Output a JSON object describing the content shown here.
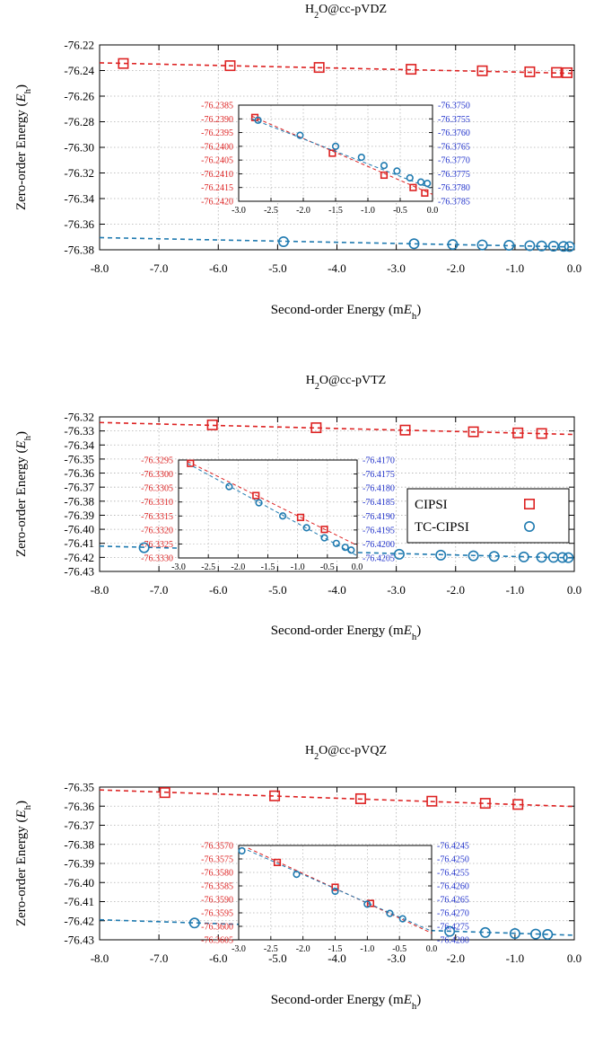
{
  "colors": {
    "cipsi": "#dd2222",
    "tc": "#1f7ab0",
    "cipsi_axis": "#dd2222",
    "tc_axis": "#2233cc"
  },
  "legend": {
    "cipsi": "CIPSI",
    "tc": "TC-CIPSI"
  },
  "chart_data": [
    {
      "type": "scatter",
      "title": "H2O@cc-pVDZ",
      "title_parts": {
        "pre": "H",
        "sub": "2",
        "post": "O@cc-pVDZ"
      },
      "xlabel": "Second-order Energy (mEh)",
      "xlabel_parts": {
        "pre": "Second-order Energy (m",
        "ital": "E",
        "sub": "h",
        "post": ")"
      },
      "ylabel": "Zero-order Energy (Eh)",
      "ylabel_parts": {
        "pre": "Zero-order Energy (",
        "ital": "E",
        "sub": "h",
        "post": ")"
      },
      "xlim": [
        -8.0,
        0.0
      ],
      "ylim": [
        -76.38,
        -76.22
      ],
      "xticks": [
        -8.0,
        -7.0,
        -6.0,
        -5.0,
        -4.0,
        -3.0,
        -2.0,
        -1.0,
        0.0
      ],
      "xtick_labels": [
        "-8.0",
        "-7.0",
        "-6.0",
        "-5.0",
        "-4.0",
        "-3.0",
        "-2.0",
        "-1.0",
        "0.0"
      ],
      "yticks": [
        -76.22,
        -76.24,
        -76.26,
        -76.28,
        -76.3,
        -76.32,
        -76.34,
        -76.36,
        -76.38
      ],
      "ytick_labels": [
        "-76.22",
        "-76.24",
        "-76.26",
        "-76.28",
        "-76.30",
        "-76.32",
        "-76.34",
        "-76.36",
        "-76.38"
      ],
      "grid": true,
      "series": [
        {
          "name": "CIPSI",
          "marker": "square",
          "x": [
            -7.6,
            -5.8,
            -4.3,
            -2.75,
            -1.55,
            -0.75,
            -0.3,
            -0.12
          ],
          "y": [
            -76.2345,
            -76.2362,
            -76.2376,
            -76.239,
            -76.2402,
            -76.241,
            -76.2415,
            -76.2417
          ],
          "fit": [
            [
              -8.0,
              -76.234
            ],
            [
              0.0,
              -76.2422
            ]
          ]
        },
        {
          "name": "TC-CIPSI",
          "marker": "circle",
          "x": [
            -4.9,
            -2.7,
            -2.05,
            -1.55,
            -1.1,
            -0.75,
            -0.55,
            -0.35,
            -0.18,
            -0.08
          ],
          "y": [
            -76.3737,
            -76.3753,
            -76.3759,
            -76.3762,
            -76.3765,
            -76.3768,
            -76.377,
            -76.3772,
            -76.3774,
            -76.3775
          ],
          "fit": [
            [
              -8.0,
              -76.3705
            ],
            [
              0.0,
              -76.3778
            ]
          ]
        }
      ],
      "inset": {
        "xlim": [
          -3.0,
          0.0
        ],
        "xticks": [
          -3.0,
          -2.5,
          -2.0,
          -1.5,
          -1.0,
          -0.5,
          0.0
        ],
        "xtick_labels": [
          "-3.0",
          "-2.5",
          "-2.0",
          "-1.5",
          "-1.0",
          "-0.5",
          "0.0"
        ],
        "ylim_left": [
          -76.242,
          -76.2385
        ],
        "yticks_left": [
          -76.2385,
          -76.239,
          -76.2395,
          -76.24,
          -76.2405,
          -76.241,
          -76.2415,
          -76.242
        ],
        "ytick_labels_left": [
          "-76.2385",
          "-76.2390",
          "-76.2395",
          "-76.2400",
          "-76.2405",
          "-76.2410",
          "-76.2415",
          "-76.2420"
        ],
        "ylim_right": [
          -76.3785,
          -76.375
        ],
        "yticks_right": [
          -76.375,
          -76.3755,
          -76.376,
          -76.3765,
          -76.377,
          -76.3775,
          -76.378,
          -76.3785
        ],
        "ytick_labels_right": [
          "-76.3750",
          "-76.3755",
          "-76.3760",
          "-76.3765",
          "-76.3770",
          "-76.3775",
          "-76.3780",
          "-76.3785"
        ],
        "series": [
          {
            "name": "CIPSI",
            "axis": "left",
            "x": [
              -2.75,
              -1.55,
              -0.75,
              -0.3,
              -0.12
            ],
            "y": [
              -76.23895,
              -76.24025,
              -76.24105,
              -76.2415,
              -76.2417
            ],
            "fit": [
              [
                -2.8,
                -76.2389
              ],
              [
                0.0,
                -76.24175
              ]
            ]
          },
          {
            "name": "TC-CIPSI",
            "axis": "right",
            "x": [
              -2.7,
              -2.05,
              -1.5,
              -1.1,
              -0.75,
              -0.55,
              -0.35,
              -0.18,
              -0.08
            ],
            "y": [
              -76.37555,
              -76.3761,
              -76.3765,
              -76.3769,
              -76.3772,
              -76.3774,
              -76.37765,
              -76.3778,
              -76.37785
            ],
            "fit": [
              [
                -2.8,
                -76.3755
              ],
              [
                0.0,
                -76.37805
              ]
            ]
          }
        ]
      }
    },
    {
      "type": "scatter",
      "title": "H2O@cc-pVTZ",
      "title_parts": {
        "pre": "H",
        "sub": "2",
        "post": "O@cc-pVTZ"
      },
      "xlabel": "Second-order Energy (mEh)",
      "xlabel_parts": {
        "pre": "Second-order Energy (m",
        "ital": "E",
        "sub": "h",
        "post": ")"
      },
      "ylabel": "Zero-order Energy (Eh)",
      "ylabel_parts": {
        "pre": "Zero-order Energy (",
        "ital": "E",
        "sub": "h",
        "post": ")"
      },
      "xlim": [
        -8.0,
        0.0
      ],
      "ylim": [
        -76.43,
        -76.32
      ],
      "xticks": [
        -8.0,
        -7.0,
        -6.0,
        -5.0,
        -4.0,
        -3.0,
        -2.0,
        -1.0,
        0.0
      ],
      "xtick_labels": [
        "-8.0",
        "-7.0",
        "-6.0",
        "-5.0",
        "-4.0",
        "-3.0",
        "-2.0",
        "-1.0",
        "0.0"
      ],
      "yticks": [
        -76.32,
        -76.33,
        -76.34,
        -76.35,
        -76.36,
        -76.37,
        -76.38,
        -76.39,
        -76.4,
        -76.41,
        -76.42,
        -76.43
      ],
      "ytick_labels": [
        "-76.32",
        "-76.33",
        "-76.34",
        "-76.35",
        "-76.36",
        "-76.37",
        "-76.38",
        "-76.39",
        "-76.40",
        "-76.41",
        "-76.42",
        "-76.43"
      ],
      "grid": true,
      "series": [
        {
          "name": "CIPSI",
          "marker": "square",
          "x": [
            -6.1,
            -4.35,
            -2.85,
            -1.7,
            -0.95,
            -0.55
          ],
          "y": [
            -76.3257,
            -76.3277,
            -76.3294,
            -76.3306,
            -76.3314,
            -76.3318
          ],
          "fit": [
            [
              -8.0,
              -76.324
            ],
            [
              0.0,
              -76.3325
            ]
          ]
        },
        {
          "name": "TC-CIPSI",
          "marker": "circle",
          "x": [
            -7.25,
            -4.4,
            -2.95,
            -2.25,
            -1.7,
            -1.35,
            -0.85,
            -0.55,
            -0.35,
            -0.2,
            -0.1
          ],
          "y": [
            -76.4131,
            -76.4163,
            -76.4178,
            -76.4184,
            -76.4189,
            -76.4193,
            -76.4197,
            -76.4199,
            -76.42,
            -76.4201,
            -76.4202
          ],
          "fit": [
            [
              -8.0,
              -76.412
            ],
            [
              0.0,
              -76.4204
            ]
          ]
        }
      ],
      "inset": {
        "xlim": [
          -3.0,
          0.0
        ],
        "xticks": [
          -3.0,
          -2.5,
          -2.0,
          -1.5,
          -1.0,
          -0.5,
          0.0
        ],
        "xtick_labels": [
          "-3.0",
          "-2.5",
          "-2.0",
          "-1.5",
          "-1.0",
          "-0.5",
          "0.0"
        ],
        "ylim_left": [
          -76.333,
          -76.3295
        ],
        "yticks_left": [
          -76.3295,
          -76.33,
          -76.3305,
          -76.331,
          -76.3315,
          -76.332,
          -76.3325,
          -76.333
        ],
        "ytick_labels_left": [
          "-76.3295",
          "-76.3300",
          "-76.3305",
          "-76.3310",
          "-76.3315",
          "-76.3320",
          "-76.3325",
          "-76.3330"
        ],
        "ylim_right": [
          -76.4205,
          -76.417
        ],
        "yticks_right": [
          -76.417,
          -76.4175,
          -76.418,
          -76.4185,
          -76.419,
          -76.4195,
          -76.42,
          -76.4205
        ],
        "ytick_labels_right": [
          "-76.4170",
          "-76.4175",
          "-76.4180",
          "-76.4185",
          "-76.4190",
          "-76.4195",
          "-76.4200",
          "-76.4205"
        ],
        "series": [
          {
            "name": "CIPSI",
            "axis": "left",
            "x": [
              -2.8,
              -1.7,
              -0.95,
              -0.55
            ],
            "y": [
              -76.32962,
              -76.33077,
              -76.33155,
              -76.33198
            ],
            "fit": [
              [
                -2.85,
                -76.32955
              ],
              [
                0.0,
                -76.33255
              ]
            ]
          },
          {
            "name": "TC-CIPSI",
            "axis": "right",
            "x": [
              -2.15,
              -1.65,
              -1.25,
              -0.85,
              -0.55,
              -0.35,
              -0.2,
              -0.1
            ],
            "y": [
              -76.41795,
              -76.41853,
              -76.419,
              -76.41942,
              -76.41978,
              -76.41998,
              -76.42012,
              -76.42022
            ],
            "fit": [
              [
                -2.85,
                -76.41712
              ],
              [
                0.0,
                -76.42042
              ]
            ]
          }
        ]
      },
      "show_legend": true
    },
    {
      "type": "scatter",
      "title": "H2O@cc-pVQZ",
      "title_parts": {
        "pre": "H",
        "sub": "2",
        "post": "O@cc-pVQZ"
      },
      "xlabel": "Second-order Energy (mEh)",
      "xlabel_parts": {
        "pre": "Second-order Energy (m",
        "ital": "E",
        "sub": "h",
        "post": ")"
      },
      "ylabel": "Zero-order Energy (Eh)",
      "ylabel_parts": {
        "pre": "Zero-order Energy (",
        "ital": "E",
        "sub": "h",
        "post": ")"
      },
      "xlim": [
        -8.0,
        0.0
      ],
      "ylim": [
        -76.43,
        -76.35
      ],
      "xticks": [
        -8.0,
        -7.0,
        -6.0,
        -5.0,
        -4.0,
        -3.0,
        -2.0,
        -1.0,
        0.0
      ],
      "xtick_labels": [
        "-8.0",
        "-7.0",
        "-6.0",
        "-5.0",
        "-4.0",
        "-3.0",
        "-2.0",
        "-1.0",
        "0.0"
      ],
      "yticks": [
        -76.35,
        -76.36,
        -76.37,
        -76.38,
        -76.39,
        -76.4,
        -76.41,
        -76.42,
        -76.43
      ],
      "ytick_labels": [
        "-76.35",
        "-76.36",
        "-76.37",
        "-76.38",
        "-76.39",
        "-76.40",
        "-76.41",
        "-76.42",
        "-76.43"
      ],
      "grid": true,
      "series": [
        {
          "name": "CIPSI",
          "marker": "square",
          "x": [
            -6.9,
            -5.05,
            -3.6,
            -2.4,
            -1.5,
            -0.95
          ],
          "y": [
            -76.3529,
            -76.3546,
            -76.3561,
            -76.3574,
            -76.3585,
            -76.3591
          ],
          "fit": [
            [
              -8.0,
              -76.3515
            ],
            [
              0.0,
              -76.3602
            ]
          ]
        },
        {
          "name": "TC-CIPSI",
          "marker": "circle",
          "x": [
            -6.4,
            -4.7,
            -3.55,
            -2.95,
            -2.1,
            -1.5,
            -1.0,
            -0.65,
            -0.45
          ],
          "y": [
            -76.4212,
            -76.423,
            -76.424,
            -76.4247,
            -76.4256,
            -76.4262,
            -76.4267,
            -76.427,
            -76.4272
          ],
          "fit": [
            [
              -8.0,
              -76.4195
            ],
            [
              0.0,
              -76.4276
            ]
          ]
        }
      ],
      "inset": {
        "xlim": [
          -3.0,
          0.0
        ],
        "xticks": [
          -3.0,
          -2.5,
          -2.0,
          -1.5,
          -1.0,
          -0.5,
          0.0
        ],
        "xtick_labels": [
          "-3.0",
          "-2.5",
          "-2.0",
          "-1.5",
          "-1.0",
          "-0.5",
          "0.0"
        ],
        "ylim_left": [
          -76.3605,
          -76.357
        ],
        "yticks_left": [
          -76.357,
          -76.3575,
          -76.358,
          -76.3585,
          -76.359,
          -76.3595,
          -76.36,
          -76.3605
        ],
        "ytick_labels_left": [
          "-76.3570",
          "-76.3575",
          "-76.3580",
          "-76.3585",
          "-76.3590",
          "-76.3595",
          "-76.3600",
          "-76.3605"
        ],
        "ylim_right": [
          -76.428,
          -76.4245
        ],
        "yticks_right": [
          -76.4245,
          -76.425,
          -76.4255,
          -76.426,
          -76.4265,
          -76.427,
          -76.4275,
          -76.428
        ],
        "ytick_labels_right": [
          "-76.4245",
          "-76.4250",
          "-76.4255",
          "-76.4260",
          "-76.4265",
          "-76.4270",
          "-76.4275",
          "-76.4280"
        ],
        "series": [
          {
            "name": "CIPSI",
            "axis": "left",
            "x": [
              -2.4,
              -1.5,
              -0.95
            ],
            "y": [
              -76.35763,
              -76.35855,
              -76.35915
            ],
            "fit": [
              [
                -2.85,
                -76.3571
              ],
              [
                0.0,
                -76.36025
              ]
            ]
          },
          {
            "name": "TC-CIPSI",
            "axis": "right",
            "x": [
              -2.95,
              -2.1,
              -1.5,
              -1.0,
              -0.65,
              -0.45
            ],
            "y": [
              -76.4247,
              -76.42557,
              -76.4262,
              -76.42668,
              -76.42702,
              -76.42722
            ],
            "fit": [
              [
                -2.95,
                -76.42458
              ],
              [
                0.0,
                -76.42768
              ]
            ]
          }
        ]
      }
    }
  ]
}
